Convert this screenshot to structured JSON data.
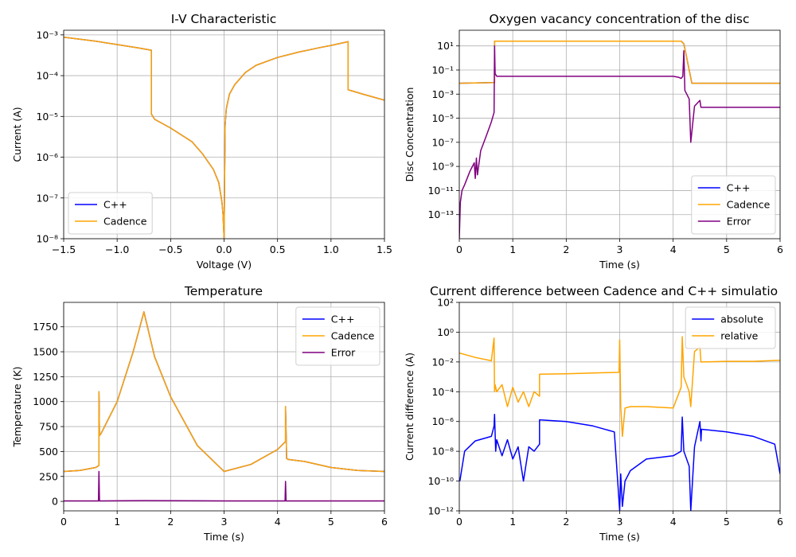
{
  "chart_data": [
    {
      "type": "line",
      "title": "I-V Characteristic",
      "xlabel": "Voltage (V)",
      "ylabel": "Current (A)",
      "xlim": [
        -1.5,
        1.5
      ],
      "ylim": [
        1e-08,
        0.0013
      ],
      "yscale": "log",
      "grid": true,
      "legend": "lower-left",
      "xticks": [
        "−1.5",
        "−1.0",
        "−0.5",
        "0.0",
        "0.5",
        "1.0",
        "1.5"
      ],
      "yticks": [
        "10⁻⁸",
        "10⁻⁷",
        "10⁻⁶",
        "10⁻⁵",
        "10⁻⁴",
        "10⁻³"
      ],
      "series": [
        {
          "name": "C++",
          "color": "#0000ff",
          "x": [
            -1.5,
            -1.2,
            -1.0,
            -0.8,
            -0.68,
            -0.68,
            -0.65,
            -0.5,
            -0.3,
            -0.2,
            -0.1,
            -0.05,
            -0.02,
            -0.01,
            0.0,
            0.01,
            0.02,
            0.05,
            0.1,
            0.2,
            0.3,
            0.5,
            0.7,
            0.9,
            1.0,
            1.16,
            1.16,
            1.2,
            1.3,
            1.5
          ],
          "y": [
            0.00088,
            0.0007,
            0.00058,
            0.00048,
            0.00042,
            1.15e-05,
            8.5e-06,
            5.2e-06,
            2.4e-06,
            1.2e-06,
            5e-07,
            2.4e-07,
            8e-08,
            4e-08,
            1e-08,
            6e-06,
            1.5e-05,
            3.5e-05,
            6e-05,
            0.00012,
            0.00018,
            0.00028,
            0.00038,
            0.00049,
            0.00055,
            0.00068,
            4.5e-05,
            4.2e-05,
            3.5e-05,
            2.5e-05
          ]
        },
        {
          "name": "Cadence",
          "color": "#ffa500",
          "x": [
            -1.5,
            -1.2,
            -1.0,
            -0.8,
            -0.68,
            -0.68,
            -0.65,
            -0.5,
            -0.3,
            -0.2,
            -0.1,
            -0.05,
            -0.02,
            -0.01,
            0.0,
            0.01,
            0.02,
            0.05,
            0.1,
            0.2,
            0.3,
            0.5,
            0.7,
            0.9,
            1.0,
            1.16,
            1.16,
            1.2,
            1.3,
            1.5
          ],
          "y": [
            0.00088,
            0.0007,
            0.00058,
            0.00048,
            0.00042,
            1.15e-05,
            8.5e-06,
            5.2e-06,
            2.4e-06,
            1.2e-06,
            5e-07,
            2.4e-07,
            8e-08,
            4e-08,
            1e-08,
            6e-06,
            1.5e-05,
            3.5e-05,
            6e-05,
            0.00012,
            0.00018,
            0.00028,
            0.00038,
            0.00049,
            0.00055,
            0.00068,
            4.5e-05,
            4.2e-05,
            3.5e-05,
            2.5e-05
          ]
        }
      ]
    },
    {
      "type": "line",
      "title": "Oxygen vacancy concentration of the disc",
      "xlabel": "Time (s)",
      "ylabel": "Disc Concentration",
      "xlim": [
        0,
        6
      ],
      "ylim": [
        1e-15,
        200
      ],
      "yscale": "log",
      "grid": true,
      "legend": "lower-right",
      "xticks": [
        "0",
        "1",
        "2",
        "3",
        "4",
        "5",
        "6"
      ],
      "yticks": [
        "10⁻¹³",
        "10⁻¹¹",
        "10⁻⁹",
        "10⁻⁷",
        "10⁻⁵",
        "10⁻³",
        "10⁻¹",
        "10¹"
      ],
      "series": [
        {
          "name": "C++",
          "color": "#0000ff",
          "x": [
            0,
            0.66,
            0.66,
            4.15,
            4.2,
            4.35,
            6
          ],
          "y": [
            0.008,
            0.009,
            25,
            25,
            15,
            0.008,
            0.008
          ]
        },
        {
          "name": "Cadence",
          "color": "#ffa500",
          "x": [
            0,
            0.66,
            0.66,
            4.15,
            4.2,
            4.35,
            6
          ],
          "y": [
            0.008,
            0.009,
            25,
            25,
            15,
            0.008,
            0.008
          ]
        },
        {
          "name": "Error",
          "color": "#800080",
          "x": [
            0,
            0.02,
            0.05,
            0.1,
            0.2,
            0.28,
            0.3,
            0.32,
            0.34,
            0.4,
            0.5,
            0.6,
            0.65,
            0.66,
            0.67,
            0.7,
            1,
            2,
            3,
            4,
            4.1,
            4.15,
            4.18,
            4.2,
            4.22,
            4.3,
            4.33,
            4.4,
            4.5,
            4.52,
            4.53,
            6
          ],
          "y": [
            1e-15,
            1e-12,
            1e-11,
            3e-11,
            4e-10,
            2e-09,
            1e-10,
            5e-09,
            2e-10,
            2e-08,
            3e-07,
            5e-06,
            3e-05,
            10,
            0.05,
            0.03,
            0.03,
            0.03,
            0.03,
            0.03,
            0.025,
            0.02,
            0.03,
            4,
            0.002,
            0.0004,
            1e-07,
            0.0001,
            0.0003,
            8e-05,
            8e-05,
            8e-05
          ]
        }
      ]
    },
    {
      "type": "line",
      "title": "Temperature",
      "xlabel": "Time (s)",
      "ylabel": "Temperature (K)",
      "xlim": [
        0,
        6
      ],
      "ylim": [
        -95,
        1995
      ],
      "yscale": "linear",
      "grid": true,
      "legend": "top-right",
      "xticks": [
        "0",
        "1",
        "2",
        "3",
        "4",
        "5",
        "6"
      ],
      "yticks": [
        "0",
        "250",
        "500",
        "750",
        "1000",
        "1250",
        "1500",
        "1750"
      ],
      "series": [
        {
          "name": "C++",
          "color": "#0000ff",
          "x": [
            0,
            0.3,
            0.6,
            0.66,
            0.66,
            0.67,
            0.7,
            1,
            1.3,
            1.5,
            1.7,
            2,
            2.5,
            3,
            3.5,
            4,
            4.15,
            4.15,
            4.17,
            4.2,
            4.5,
            5,
            5.5,
            6
          ],
          "y": [
            300,
            310,
            340,
            360,
            1100,
            660,
            680,
            1000,
            1500,
            1900,
            1450,
            1050,
            560,
            300,
            370,
            520,
            600,
            950,
            430,
            420,
            400,
            340,
            310,
            300
          ]
        },
        {
          "name": "Cadence",
          "color": "#ffa500",
          "x": [
            0,
            0.3,
            0.6,
            0.66,
            0.66,
            0.67,
            0.7,
            1,
            1.3,
            1.5,
            1.7,
            2,
            2.5,
            3,
            3.5,
            4,
            4.15,
            4.15,
            4.17,
            4.2,
            4.5,
            5,
            5.5,
            6
          ],
          "y": [
            300,
            310,
            340,
            360,
            1100,
            660,
            680,
            1000,
            1500,
            1900,
            1450,
            1050,
            560,
            300,
            370,
            520,
            600,
            950,
            430,
            420,
            400,
            340,
            310,
            300
          ]
        },
        {
          "name": "Error",
          "color": "#800080",
          "x": [
            0,
            0.65,
            0.66,
            0.67,
            1.5,
            3,
            4.14,
            4.15,
            4.16,
            6
          ],
          "y": [
            5,
            5,
            300,
            5,
            8,
            5,
            5,
            200,
            5,
            5
          ]
        }
      ]
    },
    {
      "type": "line",
      "title": "Current difference between Cadence and C++ simulatio",
      "xlabel": "Time (s)",
      "ylabel": "Current difference (A)",
      "xlim": [
        0,
        6
      ],
      "ylim": [
        1e-12,
        100
      ],
      "yscale": "log",
      "grid": true,
      "legend": "top-right",
      "xticks": [
        "0",
        "1",
        "2",
        "3",
        "4",
        "5",
        "6"
      ],
      "yticks": [
        "10⁻¹²",
        "10⁻¹⁰",
        "10⁻⁸",
        "10⁻⁶",
        "10⁻⁴",
        "10⁻²",
        "10⁰",
        "10²"
      ],
      "series": [
        {
          "name": "absolute",
          "color": "#0000ff",
          "x": [
            0.01,
            0.1,
            0.3,
            0.6,
            0.65,
            0.66,
            0.68,
            0.7,
            0.8,
            0.9,
            1,
            1.1,
            1.2,
            1.3,
            1.4,
            1.5,
            1.5,
            2,
            2.5,
            2.9,
            3,
            3.02,
            3.05,
            3.1,
            3.2,
            3.5,
            4,
            4.15,
            4.17,
            4.2,
            4.3,
            4.33,
            4.4,
            4.5,
            4.52,
            4.53,
            5,
            5.5,
            5.9,
            6
          ],
          "y": [
            1e-10,
            1e-08,
            5e-08,
            1e-07,
            5e-07,
            3e-06,
            1e-08,
            6e-08,
            5e-09,
            6e-08,
            3e-09,
            2e-08,
            1e-10,
            2e-08,
            1e-08,
            3e-08,
            1.3e-06,
            1e-06,
            5e-07,
            2e-07,
            1e-12,
            3e-10,
            2e-12,
            1e-10,
            5e-10,
            3e-09,
            5e-09,
            1e-08,
            2e-06,
            1e-08,
            1e-09,
            1e-12,
            2e-08,
            1e-06,
            5e-08,
            3e-07,
            2e-07,
            1e-07,
            3e-08,
            3e-10
          ]
        },
        {
          "name": "relative",
          "color": "#ffa500",
          "x": [
            0,
            0.3,
            0.6,
            0.65,
            0.66,
            0.67,
            0.7,
            0.8,
            0.9,
            1,
            1.1,
            1.2,
            1.3,
            1.4,
            1.5,
            1.5,
            2,
            2.5,
            2.99,
            3,
            3.02,
            3.05,
            3.1,
            3.2,
            3.5,
            4,
            4.15,
            4.17,
            4.2,
            4.3,
            4.33,
            4.4,
            4.5,
            4.52,
            4.53,
            5,
            5.5,
            6
          ],
          "y": [
            0.04,
            0.02,
            0.012,
            0.4,
            0.0001,
            0.0003,
            0.0001,
            0.0003,
            1e-05,
            0.0002,
            2e-05,
            0.0001,
            1e-05,
            0.0001,
            5e-05,
            0.0015,
            0.0016,
            0.0018,
            0.002,
            0.3,
            1e-05,
            1e-07,
            8e-06,
            1e-05,
            1e-05,
            8e-06,
            0.0002,
            0.5,
            0.001,
            0.0001,
            1e-05,
            0.05,
            0.1,
            0.01,
            0.01,
            0.011,
            0.011,
            0.013
          ]
        }
      ]
    }
  ]
}
